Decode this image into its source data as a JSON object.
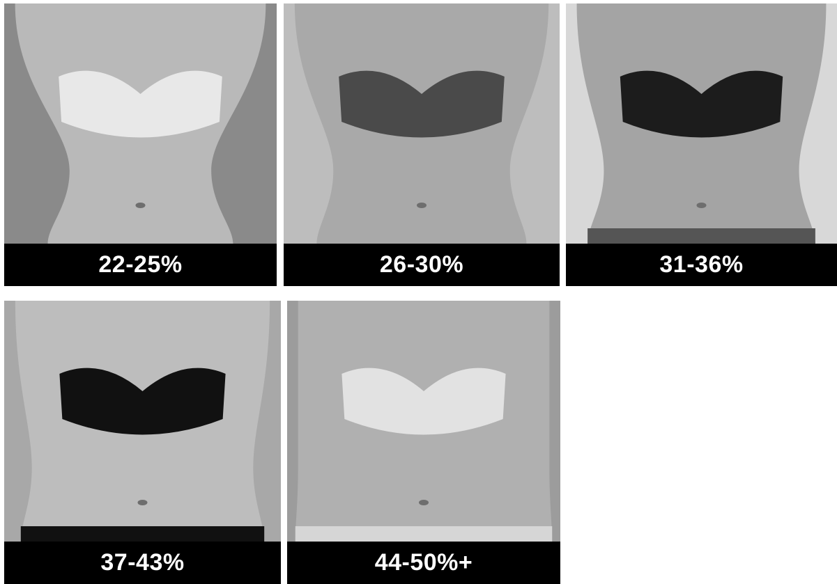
{
  "panels": [
    {
      "label": "22-25%"
    },
    {
      "label": "26-30%"
    },
    {
      "label": "31-36%"
    },
    {
      "label": "37-43%"
    },
    {
      "label": "44-50%+"
    }
  ]
}
